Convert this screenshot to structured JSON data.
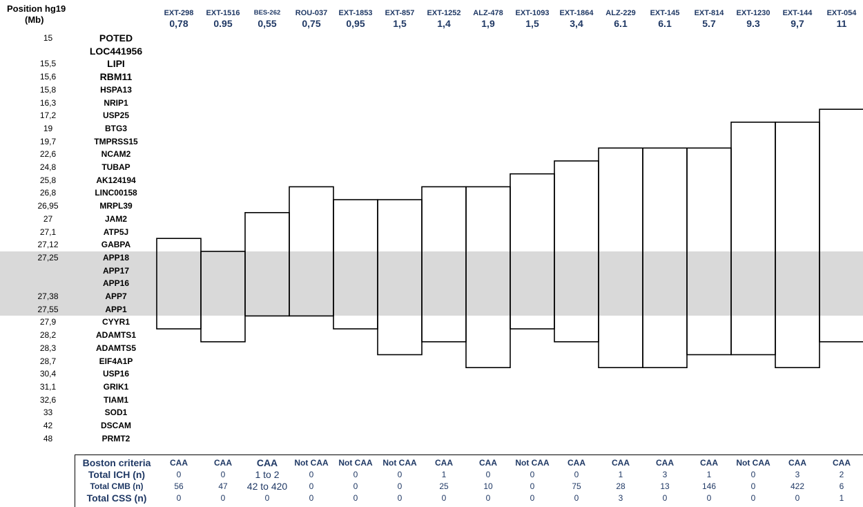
{
  "header": {
    "position_label": "Position hg19",
    "unit_label": "(Mb)"
  },
  "chart_data": {
    "type": "table",
    "rows": [
      {
        "position": "15",
        "gene": "POTED",
        "big": true
      },
      {
        "position": "",
        "gene": "LOC441956",
        "big": true
      },
      {
        "position": "15,5",
        "gene": "LIPI",
        "big": true
      },
      {
        "position": "15,6",
        "gene": "RBM11",
        "big": true
      },
      {
        "position": "15,8",
        "gene": "HSPA13"
      },
      {
        "position": "16,3",
        "gene": "NRIP1"
      },
      {
        "position": "17,2",
        "gene": "USP25"
      },
      {
        "position": "19",
        "gene": "BTG3"
      },
      {
        "position": "19,7",
        "gene": "TMPRSS15"
      },
      {
        "position": "22,6",
        "gene": "NCAM2"
      },
      {
        "position": "24,8",
        "gene": "TUBAP"
      },
      {
        "position": "25,8",
        "gene": "AK124194"
      },
      {
        "position": "26,8",
        "gene": "LINC00158"
      },
      {
        "position": "26,95",
        "gene": "MRPL39"
      },
      {
        "position": "27",
        "gene": "JAM2"
      },
      {
        "position": "27,1",
        "gene": "ATP5J"
      },
      {
        "position": "27,12",
        "gene": "GABPA"
      },
      {
        "position": "27,25",
        "gene": "APP18"
      },
      {
        "position": "",
        "gene": "APP17"
      },
      {
        "position": "",
        "gene": "APP16"
      },
      {
        "position": "27,38",
        "gene": "APP7"
      },
      {
        "position": "27,55",
        "gene": "APP1"
      },
      {
        "position": "27,9",
        "gene": "CYYR1"
      },
      {
        "position": "28,2",
        "gene": "ADAMTS1"
      },
      {
        "position": "28,3",
        "gene": "ADAMTS5"
      },
      {
        "position": "28,7",
        "gene": "EIF4A1P"
      },
      {
        "position": "30,4",
        "gene": "USP16"
      },
      {
        "position": "31,1",
        "gene": "GRIK1"
      },
      {
        "position": "32,6",
        "gene": "TIAM1"
      },
      {
        "position": "33",
        "gene": "SOD1"
      },
      {
        "position": "42",
        "gene": "DSCAM"
      },
      {
        "position": "48",
        "gene": "PRMT2"
      }
    ],
    "highlight_rows": [
      17,
      21
    ],
    "samples": [
      {
        "id": "EXT-298",
        "size": "0,78",
        "from_row": 16,
        "to_row": 22,
        "criteria": "CAA",
        "ich": "0",
        "cmb": "56",
        "css": "0"
      },
      {
        "id": "EXT-1516",
        "size": "0.95",
        "from_row": 17,
        "to_row": 23,
        "criteria": "CAA",
        "ich": "0",
        "cmb": "47",
        "css": "0"
      },
      {
        "id": "BES-262",
        "size": "0,55",
        "from_row": 14,
        "to_row": 21,
        "criteria": "CAA",
        "ich": "1 to 2",
        "cmb": "42 to 420",
        "css": "0",
        "small_id": true,
        "big_cells": true
      },
      {
        "id": "ROU-037",
        "size": "0,75",
        "from_row": 12,
        "to_row": 21,
        "criteria": "Not CAA",
        "ich": "0",
        "cmb": "0",
        "css": "0"
      },
      {
        "id": "EXT-1853",
        "size": "0,95",
        "from_row": 13,
        "to_row": 22,
        "criteria": "Not CAA",
        "ich": "0",
        "cmb": "0",
        "css": "0"
      },
      {
        "id": "EXT-857",
        "size": "1,5",
        "from_row": 13,
        "to_row": 24,
        "criteria": "Not CAA",
        "ich": "0",
        "cmb": "0",
        "css": "0"
      },
      {
        "id": "EXT-1252",
        "size": "1,4",
        "from_row": 12,
        "to_row": 23,
        "criteria": "CAA",
        "ich": "1",
        "cmb": "25",
        "css": "0"
      },
      {
        "id": "ALZ-478",
        "size": "1,9",
        "from_row": 12,
        "to_row": 25,
        "criteria": "CAA",
        "ich": "0",
        "cmb": "10",
        "css": "0"
      },
      {
        "id": "EXT-1093",
        "size": "1,5",
        "from_row": 11,
        "to_row": 22,
        "criteria": "Not CAA",
        "ich": "0",
        "cmb": "0",
        "css": "0"
      },
      {
        "id": "EXT-1864",
        "size": "3,4",
        "from_row": 10,
        "to_row": 23,
        "criteria": "CAA",
        "ich": "0",
        "cmb": "75",
        "css": "0"
      },
      {
        "id": "ALZ-229",
        "size": "6.1",
        "from_row": 9,
        "to_row": 25,
        "criteria": "CAA",
        "ich": "1",
        "cmb": "28",
        "css": "3"
      },
      {
        "id": "EXT-145",
        "size": "6.1",
        "from_row": 9,
        "to_row": 25,
        "criteria": "CAA",
        "ich": "3",
        "cmb": "13",
        "css": "0"
      },
      {
        "id": "EXT-814",
        "size": "5.7",
        "from_row": 9,
        "to_row": 24,
        "criteria": "CAA",
        "ich": "1",
        "cmb": "146",
        "css": "0"
      },
      {
        "id": "EXT-1230",
        "size": "9.3",
        "from_row": 7,
        "to_row": 24,
        "criteria": "Not CAA",
        "ich": "0",
        "cmb": "0",
        "css": "0"
      },
      {
        "id": "EXT-144",
        "size": "9,7",
        "from_row": 7,
        "to_row": 25,
        "criteria": "CAA",
        "ich": "3",
        "cmb": "422",
        "css": "0"
      },
      {
        "id": "EXT-054",
        "size": "11",
        "from_row": 6,
        "to_row": 23,
        "criteria": "CAA",
        "ich": "2",
        "cmb": "6",
        "css": "1"
      }
    ],
    "table_labels": {
      "criteria": "Boston criteria",
      "ich": "Total ICH (n)",
      "cmb": "Total CMB (n)",
      "css": "Total CSS (n)"
    }
  }
}
